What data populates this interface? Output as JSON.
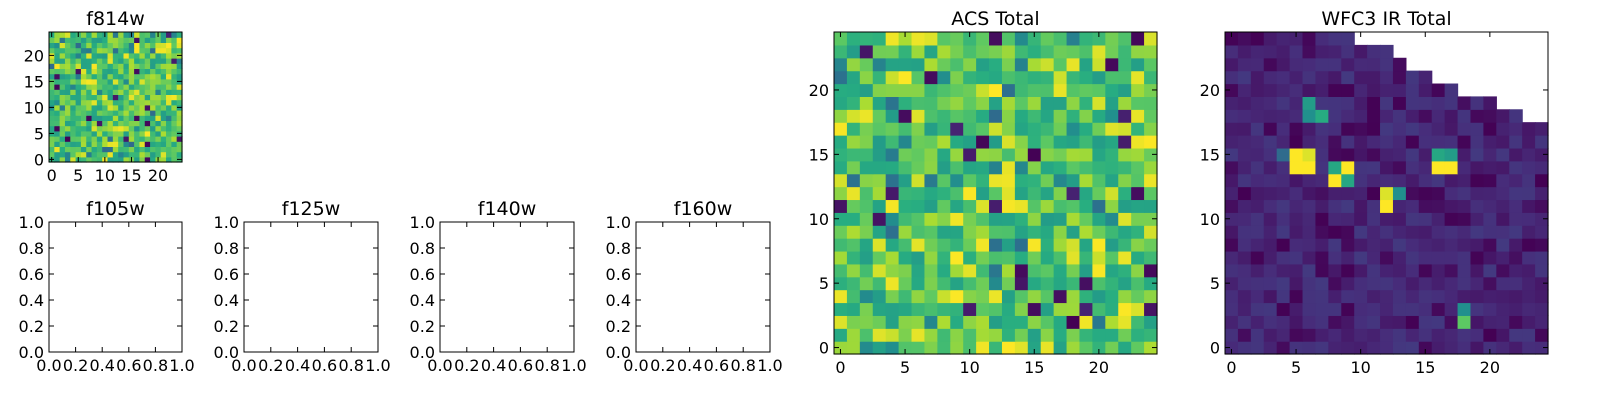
{
  "chart_data": [
    {
      "id": "f814w",
      "type": "heatmap",
      "title": "f814w",
      "grid_size": 25,
      "colormap": "viridis",
      "xticks": [
        "0",
        "5",
        "10",
        "15",
        "20"
      ],
      "yticks": [
        "0",
        "5",
        "10",
        "15",
        "20"
      ],
      "xlim": [
        -0.5,
        24.5
      ],
      "ylim": [
        -0.5,
        24.5
      ],
      "seed": 11,
      "mode": "acs"
    },
    {
      "id": "f105w",
      "type": "heatmap",
      "title": "f105w",
      "empty": true,
      "xticks": [
        "0.0",
        "0.2",
        "0.4",
        "0.6",
        "0.8",
        "1.0"
      ],
      "yticks": [
        "0.0",
        "0.2",
        "0.4",
        "0.6",
        "0.8",
        "1.0"
      ],
      "xlim": [
        0,
        1
      ],
      "ylim": [
        0,
        1
      ]
    },
    {
      "id": "f125w",
      "type": "heatmap",
      "title": "f125w",
      "empty": true,
      "xticks": [
        "0.0",
        "0.2",
        "0.4",
        "0.6",
        "0.8",
        "1.0"
      ],
      "yticks": [
        "0.0",
        "0.2",
        "0.4",
        "0.6",
        "0.8",
        "1.0"
      ],
      "xlim": [
        0,
        1
      ],
      "ylim": [
        0,
        1
      ]
    },
    {
      "id": "f140w",
      "type": "heatmap",
      "title": "f140w",
      "empty": true,
      "xticks": [
        "0.0",
        "0.2",
        "0.4",
        "0.6",
        "0.8",
        "1.0"
      ],
      "yticks": [
        "0.0",
        "0.2",
        "0.4",
        "0.6",
        "0.8",
        "1.0"
      ],
      "xlim": [
        0,
        1
      ],
      "ylim": [
        0,
        1
      ]
    },
    {
      "id": "f160w",
      "type": "heatmap",
      "title": "f160w",
      "empty": true,
      "xticks": [
        "0.0",
        "0.2",
        "0.4",
        "0.6",
        "0.8",
        "1.0"
      ],
      "yticks": [
        "0.0",
        "0.2",
        "0.4",
        "0.6",
        "0.8",
        "1.0"
      ],
      "xlim": [
        0,
        1
      ],
      "ylim": [
        0,
        1
      ]
    },
    {
      "id": "acs_total",
      "type": "heatmap",
      "title": "ACS Total",
      "grid_size": 25,
      "colormap": "viridis",
      "xticks": [
        "0",
        "5",
        "10",
        "15",
        "20"
      ],
      "yticks": [
        "0",
        "5",
        "10",
        "15",
        "20"
      ],
      "xlim": [
        -0.5,
        24.5
      ],
      "ylim": [
        -0.5,
        24.5
      ],
      "seed": 7,
      "mode": "acs"
    },
    {
      "id": "wfc3_ir_total",
      "type": "heatmap",
      "title": "WFC3 IR Total",
      "grid_size": 25,
      "colormap": "viridis",
      "xticks": [
        "0",
        "5",
        "10",
        "15",
        "20"
      ],
      "yticks": [
        "0",
        "5",
        "10",
        "15",
        "20"
      ],
      "xlim": [
        -0.5,
        24.5
      ],
      "ylim": [
        -0.5,
        24.5
      ],
      "seed": 3,
      "mode": "ir",
      "missing_top_right": [
        {
          "rows": [
            24
          ],
          "from_col": 10
        },
        {
          "rows": [
            23
          ],
          "from_col": 13
        },
        {
          "rows": [
            22
          ],
          "from_col": 14
        },
        {
          "rows": [
            21
          ],
          "from_col": 16
        },
        {
          "rows": [
            20
          ],
          "from_col": 18
        },
        {
          "rows": [
            19
          ],
          "from_col": 21
        },
        {
          "rows": [
            18
          ],
          "from_col": 23
        }
      ],
      "bright_cells": [
        {
          "x": 5,
          "y": 14,
          "v": 1.0
        },
        {
          "x": 6,
          "y": 14,
          "v": 1.0
        },
        {
          "x": 5,
          "y": 15,
          "v": 1.0
        },
        {
          "x": 6,
          "y": 15,
          "v": 0.95
        },
        {
          "x": 4,
          "y": 15,
          "v": 0.35
        },
        {
          "x": 6,
          "y": 19,
          "v": 0.55
        },
        {
          "x": 6,
          "y": 18,
          "v": 0.5
        },
        {
          "x": 7,
          "y": 18,
          "v": 0.62
        },
        {
          "x": 8,
          "y": 13,
          "v": 1.0
        },
        {
          "x": 9,
          "y": 14,
          "v": 1.0
        },
        {
          "x": 8,
          "y": 14,
          "v": 0.6
        },
        {
          "x": 9,
          "y": 13,
          "v": 0.6
        },
        {
          "x": 12,
          "y": 11,
          "v": 1.0
        },
        {
          "x": 12,
          "y": 12,
          "v": 0.95
        },
        {
          "x": 13,
          "y": 12,
          "v": 0.5
        },
        {
          "x": 16,
          "y": 14,
          "v": 1.0
        },
        {
          "x": 17,
          "y": 14,
          "v": 1.0
        },
        {
          "x": 16,
          "y": 15,
          "v": 0.6
        },
        {
          "x": 17,
          "y": 15,
          "v": 0.55
        },
        {
          "x": 18,
          "y": 2,
          "v": 0.75
        },
        {
          "x": 18,
          "y": 3,
          "v": 0.5
        }
      ]
    }
  ]
}
